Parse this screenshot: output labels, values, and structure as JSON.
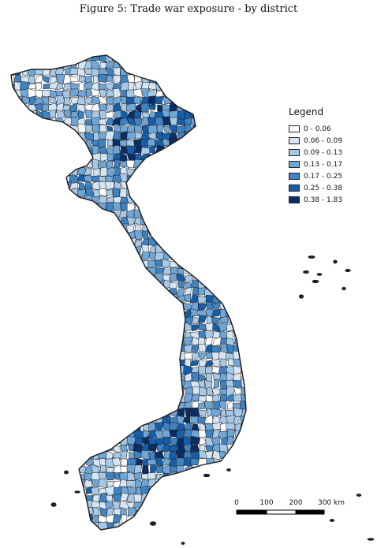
{
  "title": "Figure 5: Trade war exposure - by district",
  "legend": {
    "title": "Legend",
    "classes": [
      {
        "label": "0 - 0.06",
        "color": "#ffffff"
      },
      {
        "label": "0.06 - 0.09",
        "color": "#d6e5f4"
      },
      {
        "label": "0.09 - 0.13",
        "color": "#a8c9e6"
      },
      {
        "label": "0.13 - 0.17",
        "color": "#6fa6d6"
      },
      {
        "label": "0.17 - 0.25",
        "color": "#3f82c1"
      },
      {
        "label": "0.25 - 0.38",
        "color": "#175ea8"
      },
      {
        "label": "0.38 - 1.83",
        "color": "#0a2d66"
      }
    ]
  },
  "scale_bar": {
    "labels": [
      "0",
      "100",
      "200",
      "300 km"
    ]
  }
}
